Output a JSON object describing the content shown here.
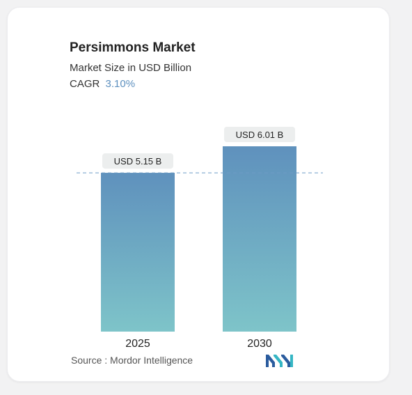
{
  "header": {
    "title": "Persimmons Market",
    "subtitle": "Market Size in USD Billion",
    "cagr_label": "CAGR",
    "cagr_value": "3.10%"
  },
  "footer": {
    "source": "Source :  Mordor Intelligence",
    "logo_icon": "mordor-intelligence-logo-icon"
  },
  "colors": {
    "bar_top": "#5f91bd",
    "bar_bottom": "#7ec4c9",
    "reference_line": "#6e9cc6",
    "label_bg": "#eceeee",
    "cagr": "#5d90bf"
  },
  "chart_data": {
    "type": "bar",
    "categories": [
      "2025",
      "2030"
    ],
    "values": [
      5.15,
      6.01
    ],
    "data_labels": [
      "USD 5.15 B",
      "USD 6.01 B"
    ],
    "title": "Persimmons Market",
    "ylabel": "",
    "xlabel": "",
    "ylim": [
      0,
      6.01
    ],
    "grid": false,
    "reference_line_at": 5.15
  }
}
